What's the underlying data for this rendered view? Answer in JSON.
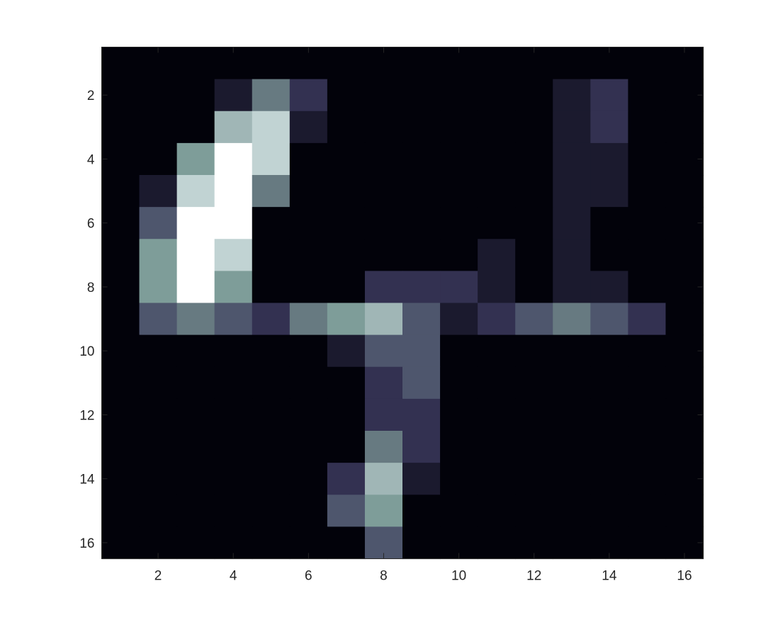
{
  "chart_data": {
    "type": "heatmap",
    "colormap": "bone",
    "colors": {
      "levels": [
        "#02020a",
        "#1b1a2e",
        "#333151",
        "#4e566d",
        "#677a81",
        "#7e9d99",
        "#a0b6b6",
        "#c1d3d3",
        "#ffffff"
      ],
      "axis": "#262626"
    },
    "xlim": [
      0.5,
      16.5
    ],
    "ylim": [
      0.5,
      16.5
    ],
    "y_reversed": true,
    "grid": false,
    "x_ticks": [
      2,
      4,
      6,
      8,
      10,
      12,
      14,
      16
    ],
    "y_ticks": [
      2,
      4,
      6,
      8,
      10,
      12,
      14,
      16
    ],
    "x_tick_labels": [
      "2",
      "4",
      "6",
      "8",
      "10",
      "12",
      "14",
      "16"
    ],
    "y_tick_labels": [
      "2",
      "4",
      "6",
      "8",
      "10",
      "12",
      "14",
      "16"
    ],
    "values": [
      [
        0,
        0,
        0,
        0,
        0,
        0,
        0,
        0,
        0,
        0,
        0,
        0,
        0,
        0,
        0,
        0
      ],
      [
        0,
        0,
        0,
        1,
        4,
        2,
        0,
        0,
        0,
        0,
        0,
        0,
        1,
        2,
        0,
        0
      ],
      [
        0,
        0,
        0,
        6,
        7,
        1,
        0,
        0,
        0,
        0,
        0,
        0,
        1,
        2,
        0,
        0
      ],
      [
        0,
        0,
        5,
        8,
        7,
        0,
        0,
        0,
        0,
        0,
        0,
        0,
        1,
        1,
        0,
        0
      ],
      [
        0,
        1,
        7,
        8,
        4,
        0,
        0,
        0,
        0,
        0,
        0,
        0,
        1,
        1,
        0,
        0
      ],
      [
        0,
        3,
        8,
        8,
        0,
        0,
        0,
        0,
        0,
        0,
        0,
        0,
        1,
        0,
        0,
        0
      ],
      [
        0,
        5,
        8,
        7,
        0,
        0,
        0,
        0,
        0,
        0,
        1,
        0,
        1,
        0,
        0,
        0
      ],
      [
        0,
        5,
        8,
        5,
        0,
        0,
        0,
        2,
        2,
        2,
        1,
        0,
        1,
        1,
        0,
        0
      ],
      [
        0,
        3,
        4,
        3,
        2,
        4,
        5,
        6,
        3,
        1,
        2,
        3,
        4,
        3,
        2,
        0
      ],
      [
        0,
        0,
        0,
        0,
        0,
        0,
        1,
        3,
        3,
        0,
        0,
        0,
        0,
        0,
        0,
        0
      ],
      [
        0,
        0,
        0,
        0,
        0,
        0,
        0,
        2,
        3,
        0,
        0,
        0,
        0,
        0,
        0,
        0
      ],
      [
        0,
        0,
        0,
        0,
        0,
        0,
        0,
        2,
        2,
        0,
        0,
        0,
        0,
        0,
        0,
        0
      ],
      [
        0,
        0,
        0,
        0,
        0,
        0,
        0,
        4,
        2,
        0,
        0,
        0,
        0,
        0,
        0,
        0
      ],
      [
        0,
        0,
        0,
        0,
        0,
        0,
        2,
        6,
        1,
        0,
        0,
        0,
        0,
        0,
        0,
        0
      ],
      [
        0,
        0,
        0,
        0,
        0,
        0,
        3,
        5,
        0,
        0,
        0,
        0,
        0,
        0,
        0,
        0
      ],
      [
        0,
        0,
        0,
        0,
        0,
        0,
        0,
        3,
        0,
        0,
        0,
        0,
        0,
        0,
        0,
        0
      ]
    ]
  }
}
